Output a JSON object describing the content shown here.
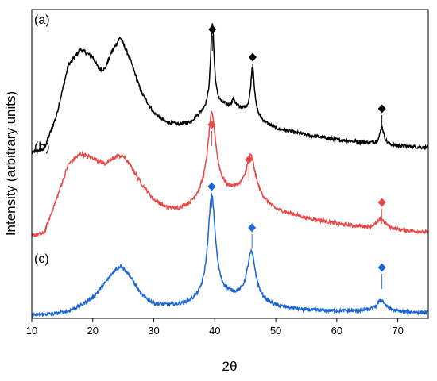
{
  "chart_data": {
    "type": "line",
    "xlabel": "2θ",
    "ylabel": "Intensity (arbitrary units)",
    "xlim": [
      10,
      75
    ],
    "xticks": [
      "10",
      "20",
      "30",
      "40",
      "50",
      "60",
      "70"
    ],
    "y_ticks_shown": false,
    "grid": false,
    "series": [
      {
        "panel_label": "(a)",
        "color": "#000000",
        "baseline": 2.05,
        "background": [
          [
            10,
            0.0
          ],
          [
            12,
            0.04
          ],
          [
            14,
            0.45
          ],
          [
            16,
            1.1
          ],
          [
            18,
            1.3
          ],
          [
            20,
            1.2
          ],
          [
            21,
            1.05
          ],
          [
            22,
            1.05
          ],
          [
            23,
            1.25
          ],
          [
            24.5,
            1.45
          ],
          [
            26,
            1.2
          ],
          [
            28,
            0.75
          ],
          [
            30,
            0.5
          ],
          [
            32,
            0.38
          ],
          [
            34,
            0.35
          ],
          [
            36,
            0.38
          ],
          [
            38,
            0.5
          ],
          [
            40,
            0.6
          ],
          [
            42,
            0.58
          ],
          [
            44,
            0.55
          ],
          [
            46,
            0.5
          ],
          [
            48,
            0.38
          ],
          [
            50,
            0.3
          ],
          [
            55,
            0.22
          ],
          [
            60,
            0.16
          ],
          [
            65,
            0.12
          ],
          [
            70,
            0.08
          ],
          [
            75,
            0.06
          ]
        ],
        "peaks": [
          [
            39.6,
            1.05,
            0.35
          ],
          [
            46.2,
            0.6,
            0.35
          ],
          [
            67.4,
            0.22,
            0.4
          ],
          [
            43.1,
            0.1,
            0.3
          ]
        ],
        "markers": [
          {
            "x": 39.6,
            "y": 3.6
          },
          {
            "x": 46.2,
            "y": 3.25
          },
          {
            "x": 67.4,
            "y": 2.6
          }
        ]
      },
      {
        "panel_label": "(b)",
        "color": "#e84848",
        "baseline": 1.0,
        "background": [
          [
            10,
            0.0
          ],
          [
            12,
            0.03
          ],
          [
            14,
            0.45
          ],
          [
            16,
            0.9
          ],
          [
            18,
            1.03
          ],
          [
            20,
            0.98
          ],
          [
            22,
            0.9
          ],
          [
            24,
            1.0
          ],
          [
            25,
            1.0
          ],
          [
            26,
            0.9
          ],
          [
            28,
            0.65
          ],
          [
            30,
            0.45
          ],
          [
            32,
            0.35
          ],
          [
            34,
            0.33
          ],
          [
            36,
            0.38
          ],
          [
            38,
            0.5
          ],
          [
            40,
            0.6
          ],
          [
            42,
            0.55
          ],
          [
            44,
            0.55
          ],
          [
            46,
            0.55
          ],
          [
            48,
            0.42
          ],
          [
            50,
            0.32
          ],
          [
            55,
            0.22
          ],
          [
            60,
            0.15
          ],
          [
            65,
            0.1
          ],
          [
            70,
            0.07
          ],
          [
            75,
            0.04
          ]
        ],
        "peaks": [
          [
            39.5,
            0.95,
            0.8
          ],
          [
            45.9,
            0.45,
            0.9
          ],
          [
            67.3,
            0.12,
            0.9
          ]
        ],
        "markers": [
          {
            "x": 39.5,
            "y": 2.4
          },
          {
            "x": 45.6,
            "y": 1.96
          },
          {
            "x": 67.4,
            "y": 1.42
          }
        ]
      },
      {
        "panel_label": "(c)",
        "color": "#1a66d6",
        "baseline": 0.0,
        "background": [
          [
            10,
            0.0
          ],
          [
            14,
            0.02
          ],
          [
            16,
            0.05
          ],
          [
            18,
            0.12
          ],
          [
            20,
            0.22
          ],
          [
            22,
            0.4
          ],
          [
            23.5,
            0.55
          ],
          [
            24.6,
            0.62
          ],
          [
            26,
            0.5
          ],
          [
            28,
            0.25
          ],
          [
            30,
            0.14
          ],
          [
            32,
            0.12
          ],
          [
            34,
            0.12
          ],
          [
            36,
            0.14
          ],
          [
            38,
            0.18
          ],
          [
            40,
            0.2
          ],
          [
            42,
            0.22
          ],
          [
            44,
            0.2
          ],
          [
            46,
            0.18
          ],
          [
            48,
            0.14
          ],
          [
            50,
            0.1
          ],
          [
            55,
            0.06
          ],
          [
            60,
            0.05
          ],
          [
            65,
            0.05
          ],
          [
            70,
            0.04
          ],
          [
            75,
            0.03
          ]
        ],
        "peaks": [
          [
            39.5,
            1.3,
            0.75
          ],
          [
            46.0,
            0.6,
            0.85
          ],
          [
            67.3,
            0.14,
            0.85
          ]
        ],
        "markers": [
          {
            "x": 39.5,
            "y": 1.62
          },
          {
            "x": 46.1,
            "y": 1.1
          },
          {
            "x": 67.4,
            "y": 0.6
          }
        ]
      }
    ]
  }
}
